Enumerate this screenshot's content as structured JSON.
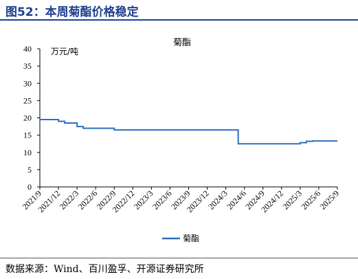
{
  "header": {
    "title": "图52：本周菊酯价格稳定"
  },
  "source": "数据来源：Wind、百川盈孚、开源证券研究所",
  "colors": {
    "accent": "#1f3f8f",
    "series": "#2e6fbf"
  },
  "chart_data": {
    "type": "line",
    "title": "菊酯",
    "unit_label": "万元/吨",
    "xlabel": "",
    "ylabel": "",
    "ylim": [
      0,
      40
    ],
    "y_ticks": [
      "0",
      "5",
      "10",
      "15",
      "20",
      "25",
      "30",
      "35",
      "40"
    ],
    "x_ticks": [
      "2021/9",
      "2021/12",
      "2022/3",
      "2022/6",
      "2022/9",
      "2022/12",
      "2023/3",
      "2023/6",
      "2023/9",
      "2023/12",
      "2024/3",
      "2024/6",
      "2024/9",
      "2024/12",
      "2025/3",
      "2025/6",
      "2025/9"
    ],
    "grid": false,
    "legend": "bottom",
    "series": [
      {
        "name": "菊酯",
        "step": true,
        "points": [
          [
            "2021-09",
            19.5
          ],
          [
            "2021-12",
            19.0
          ],
          [
            "2022-01",
            18.5
          ],
          [
            "2022-03",
            17.5
          ],
          [
            "2022-04",
            17.0
          ],
          [
            "2022-09",
            16.5
          ],
          [
            "2024-05",
            16.5
          ],
          [
            "2024-05",
            12.5
          ],
          [
            "2025-03",
            12.5
          ],
          [
            "2025-03",
            12.8
          ],
          [
            "2025-04",
            13.2
          ],
          [
            "2025-05",
            13.3
          ],
          [
            "2025-09",
            13.3
          ]
        ]
      }
    ]
  }
}
